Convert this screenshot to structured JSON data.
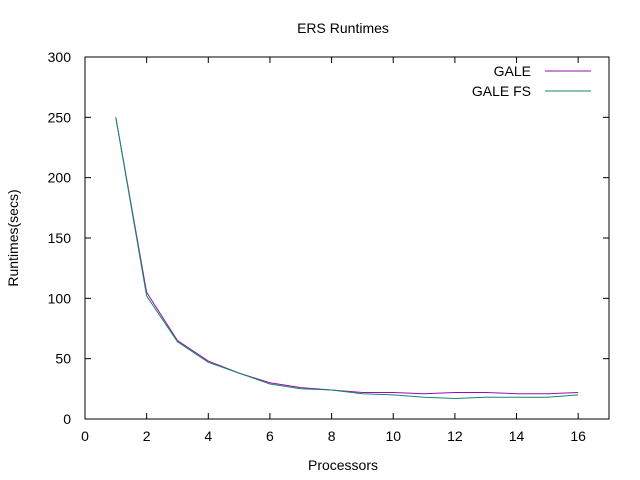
{
  "chart_data": {
    "type": "line",
    "title": "ERS Runtimes",
    "xlabel": "Processors",
    "ylabel": "Runtimes(secs)",
    "xlim": [
      0,
      17
    ],
    "ylim": [
      0,
      300
    ],
    "xticks": [
      0,
      2,
      4,
      6,
      8,
      10,
      12,
      14,
      16
    ],
    "yticks": [
      0,
      50,
      100,
      150,
      200,
      250,
      300
    ],
    "grid": false,
    "legend_position": "top-right",
    "x": [
      1,
      2,
      3,
      4,
      5,
      6,
      7,
      8,
      9,
      10,
      11,
      12,
      13,
      14,
      15,
      16
    ],
    "series": [
      {
        "name": "GALE",
        "color": "#9b0dac",
        "values": [
          250,
          105,
          65,
          48,
          38,
          30,
          26,
          24,
          22,
          22,
          21,
          22,
          22,
          21,
          21,
          22
        ]
      },
      {
        "name": "GALE FS",
        "color": "#0f8a6e",
        "values": [
          250,
          102,
          64,
          47,
          38,
          29,
          25,
          24,
          21,
          20,
          18,
          17,
          18,
          18,
          18,
          20
        ]
      }
    ]
  }
}
